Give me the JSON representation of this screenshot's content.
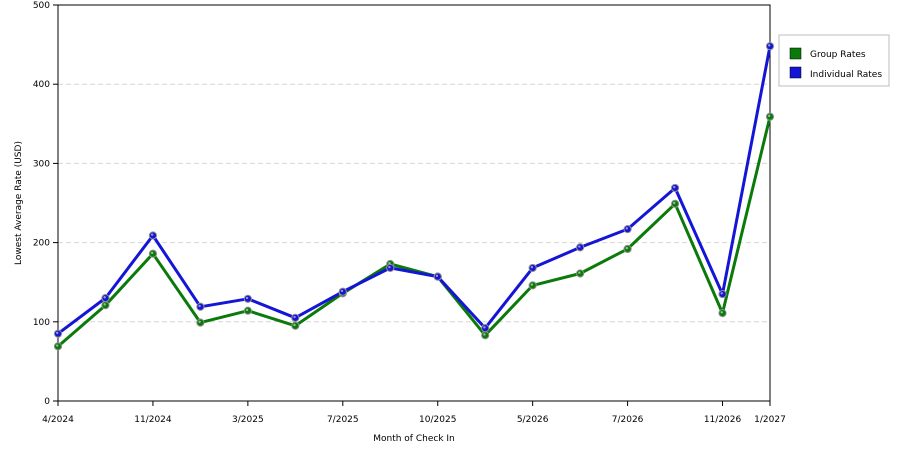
{
  "chart_data": {
    "type": "line",
    "xlabel": "Month of Check In",
    "ylabel": "Lowest Average Rate (USD)",
    "ylim": [
      0,
      500
    ],
    "yticks": [
      0,
      100,
      200,
      300,
      400,
      500
    ],
    "x_ticks": [
      "4/2024",
      "11/2024",
      "3/2025",
      "7/2025",
      "10/2025",
      "5/2026",
      "7/2026",
      "11/2026",
      "1/2027"
    ],
    "x_tick_positions": [
      0,
      2,
      4,
      6,
      8,
      10,
      12,
      14,
      15
    ],
    "grid": "horizontal dashed",
    "legend": "right",
    "point_count": 16,
    "series": [
      {
        "name": "Group Rates",
        "color": "#0a7a0a",
        "values": [
          69,
          121,
          186,
          99,
          114,
          95,
          136,
          173,
          157,
          83,
          146,
          161,
          192,
          249,
          111,
          359
        ]
      },
      {
        "name": "Individual Rates",
        "color": "#1515d6",
        "values": [
          85,
          130,
          209,
          119,
          129,
          105,
          138,
          168,
          157,
          92,
          168,
          194,
          217,
          269,
          135,
          448
        ]
      }
    ]
  }
}
